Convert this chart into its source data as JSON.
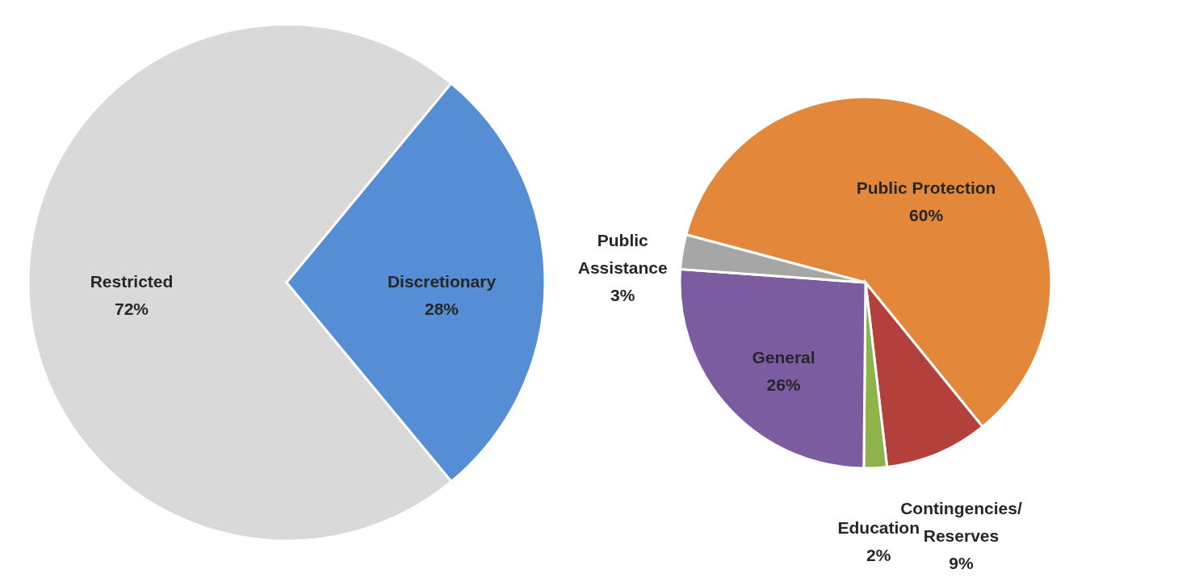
{
  "chart_data": [
    {
      "type": "pie",
      "categories": [
        "Restricted",
        "Discretionary"
      ],
      "values": [
        72,
        28
      ],
      "colors": [
        "#d9d9d9",
        "#558ed5"
      ],
      "value_labels": [
        "72%",
        "28%"
      ]
    },
    {
      "type": "pie",
      "categories": [
        "Public Protection",
        "Contingencies/Reserves",
        "Education",
        "General",
        "Public Assistance"
      ],
      "values": [
        60,
        9,
        2,
        26,
        3
      ],
      "colors": [
        "#e3883a",
        "#b3403a",
        "#8db34a",
        "#7b5ca0",
        "#a6a6a6"
      ],
      "value_labels": [
        "60%",
        "9%",
        "2%",
        "26%",
        "3%"
      ]
    }
  ]
}
